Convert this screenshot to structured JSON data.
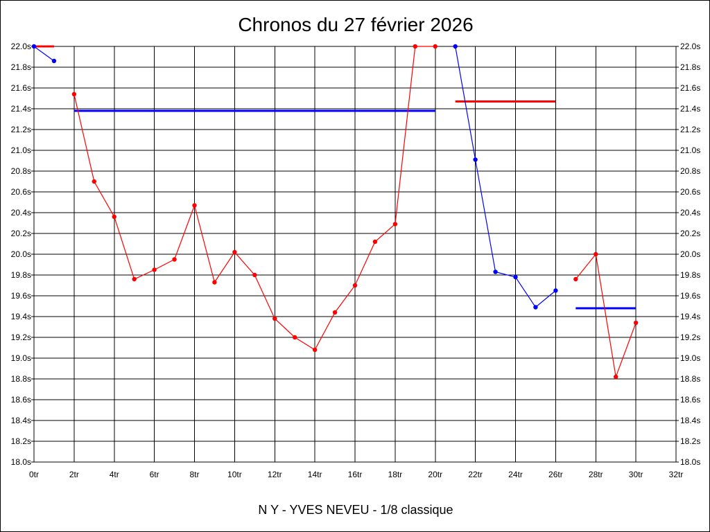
{
  "chart_data": {
    "type": "line",
    "title": "Chronos du 27 février 2026",
    "subtitle": "N Y - YVES NEVEU - 1/8 classique",
    "xlim": [
      0,
      32
    ],
    "ylim": [
      18.0,
      22.0
    ],
    "grid": true,
    "x_ticks": [
      "0tr",
      "2tr",
      "4tr",
      "6tr",
      "8tr",
      "10tr",
      "12tr",
      "14tr",
      "16tr",
      "18tr",
      "20tr",
      "22tr",
      "24tr",
      "26tr",
      "28tr",
      "30tr",
      "32tr"
    ],
    "y_ticks": [
      "18.0s",
      "18.2s",
      "18.4s",
      "18.6s",
      "18.8s",
      "19.0s",
      "19.2s",
      "19.4s",
      "19.6s",
      "19.8s",
      "20.0s",
      "20.2s",
      "20.4s",
      "20.6s",
      "20.8s",
      "21.0s",
      "21.2s",
      "21.4s",
      "21.6s",
      "21.8s",
      "22.0s"
    ],
    "series": [
      {
        "color": "#0000ff",
        "points": [
          [
            0,
            22.0
          ],
          [
            1,
            21.86
          ]
        ]
      },
      {
        "color": "#ff0000",
        "points": [
          [
            2,
            21.54
          ],
          [
            3,
            20.7
          ],
          [
            4,
            20.36
          ],
          [
            5,
            19.76
          ],
          [
            6,
            19.85
          ],
          [
            7,
            19.95
          ],
          [
            8,
            20.47
          ],
          [
            9,
            19.73
          ],
          [
            10,
            20.02
          ],
          [
            11,
            19.8
          ],
          [
            12,
            19.38
          ],
          [
            13,
            19.2
          ],
          [
            14,
            19.08
          ],
          [
            15,
            19.44
          ],
          [
            16,
            19.7
          ],
          [
            17,
            20.12
          ],
          [
            18,
            20.29
          ],
          [
            19,
            22.0
          ],
          [
            20,
            22.0
          ]
        ]
      },
      {
        "color": "#0000ff",
        "points": [
          [
            21,
            22.0
          ],
          [
            22,
            20.91
          ],
          [
            23,
            19.83
          ],
          [
            24,
            19.78
          ],
          [
            25,
            19.49
          ],
          [
            26,
            19.65
          ]
        ]
      },
      {
        "color": "#ff0000",
        "points": [
          [
            27,
            19.76
          ],
          [
            28,
            20.0
          ],
          [
            29,
            18.82
          ],
          [
            30,
            19.34
          ]
        ]
      }
    ],
    "averages": [
      {
        "color": "#ff0000",
        "x": [
          0,
          1
        ],
        "y": 22.0
      },
      {
        "color": "#0000ff",
        "x": [
          2,
          20
        ],
        "y": 21.38
      },
      {
        "color": "#ff0000",
        "x": [
          21,
          26
        ],
        "y": 21.47
      },
      {
        "color": "#0000ff",
        "x": [
          27,
          30
        ],
        "y": 19.48
      }
    ]
  }
}
